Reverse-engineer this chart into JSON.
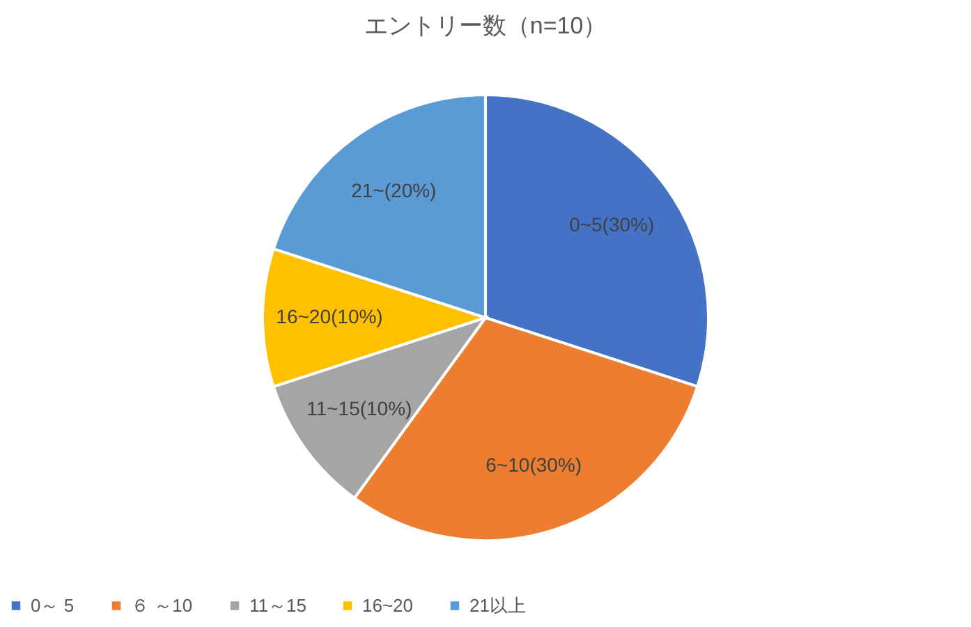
{
  "chart_data": {
    "type": "pie",
    "title": "エントリー数（n=10）",
    "categories": [
      "0～ 5",
      "６ ～10",
      "11～15",
      "16~20",
      "21以上"
    ],
    "values": [
      30,
      30,
      10,
      10,
      20
    ],
    "colors": [
      "#4472c4",
      "#ed7d31",
      "#a5a5a5",
      "#ffc000",
      "#5b9bd5"
    ],
    "value_labels": [
      "0~5(30%)",
      "6~10(30%)",
      "11~15(10%)",
      "16~20(10%)",
      "21~(20%)"
    ],
    "legend": "bottom"
  }
}
